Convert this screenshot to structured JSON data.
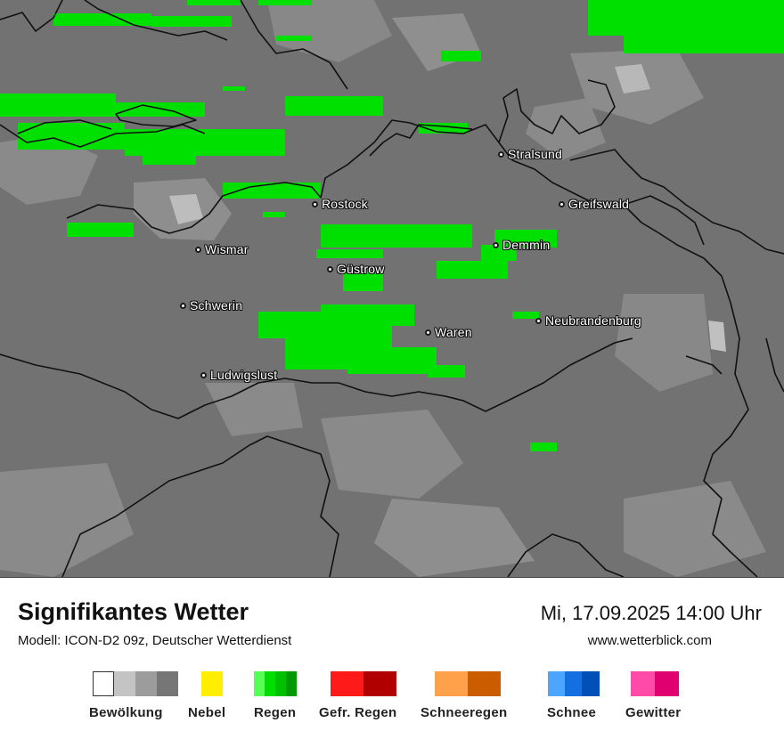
{
  "map": {
    "cities": [
      {
        "name": "Stralsund",
        "icon": "city-dot-icon"
      },
      {
        "name": "Rostock",
        "icon": "city-dot-icon"
      },
      {
        "name": "Greifswald",
        "icon": "city-dot-icon"
      },
      {
        "name": "Demmin",
        "icon": "city-dot-icon"
      },
      {
        "name": "Wismar",
        "icon": "city-dot-icon"
      },
      {
        "name": "Güstrow",
        "icon": "city-dot-icon"
      },
      {
        "name": "Schwerin",
        "icon": "city-dot-icon"
      },
      {
        "name": "Waren",
        "icon": "city-dot-icon"
      },
      {
        "name": "Neubrandenburg",
        "icon": "city-dot-icon"
      },
      {
        "name": "Ludwigslust",
        "icon": "city-dot-icon"
      }
    ],
    "colors": {
      "background": "#727272",
      "rain": "#00e000",
      "coast": "#111111"
    }
  },
  "footer": {
    "title": "Signifikantes Wetter",
    "model": "Modell: ICON-D2 09z, Deutscher Wetterdienst",
    "datetime": "Mi, 17.09.2025 14:00 Uhr",
    "website": "www.wetterblick.com"
  },
  "legend": [
    {
      "label": "Bewölkung",
      "colors": [
        "#ffffff",
        "#c4c4c4",
        "#9c9c9c",
        "#767676"
      ]
    },
    {
      "label": "Nebel",
      "colors": [
        "#ffee00"
      ]
    },
    {
      "label": "Regen",
      "colors": [
        "#55ff55",
        "#00dd00",
        "#00c000",
        "#009900"
      ]
    },
    {
      "label": "Gefr. Regen",
      "colors": [
        "#ff1a1a",
        "#b00000"
      ]
    },
    {
      "label": "Schneeregen",
      "colors": [
        "#ffa04a",
        "#cc5c00"
      ]
    },
    {
      "label": "Schnee",
      "colors": [
        "#4ca6ff",
        "#1470e0",
        "#0050b8"
      ]
    },
    {
      "label": "Gewitter",
      "colors": [
        "#ff4aa8",
        "#e00070"
      ]
    }
  ]
}
